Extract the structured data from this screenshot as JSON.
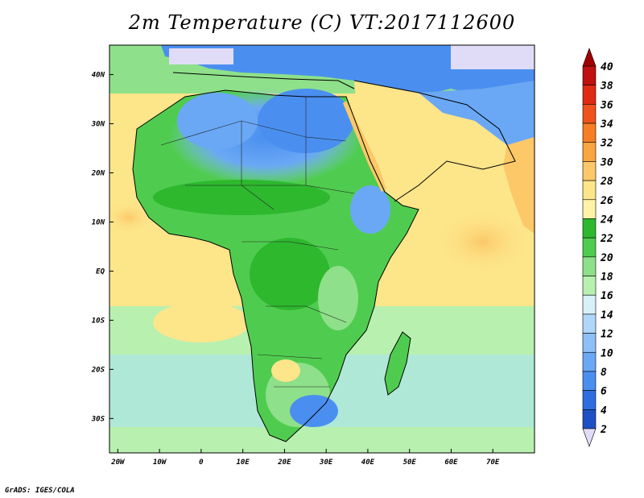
{
  "title": "2m Temperature (C) VT:2017112600",
  "credit": "GrADS: IGES/COLA",
  "map": {
    "lon_range": [
      -22,
      80
    ],
    "lat_range": [
      -37,
      46
    ],
    "lon_ticks": [
      {
        "lon": -20,
        "label": "20W"
      },
      {
        "lon": -10,
        "label": "10W"
      },
      {
        "lon": 0,
        "label": "0"
      },
      {
        "lon": 10,
        "label": "10E"
      },
      {
        "lon": 20,
        "label": "20E"
      },
      {
        "lon": 30,
        "label": "30E"
      },
      {
        "lon": 40,
        "label": "40E"
      },
      {
        "lon": 50,
        "label": "50E"
      },
      {
        "lon": 60,
        "label": "60E"
      },
      {
        "lon": 70,
        "label": "70E"
      }
    ],
    "lat_ticks": [
      {
        "lat": 40,
        "label": "40N"
      },
      {
        "lat": 30,
        "label": "30N"
      },
      {
        "lat": 20,
        "label": "20N"
      },
      {
        "lat": 10,
        "label": "10N"
      },
      {
        "lat": 0,
        "label": "EQ"
      },
      {
        "lat": -10,
        "label": "10S"
      },
      {
        "lat": -20,
        "label": "20S"
      },
      {
        "lat": -30,
        "label": "30S"
      }
    ]
  },
  "colorbar": {
    "levels": [
      "2",
      "4",
      "6",
      "8",
      "10",
      "12",
      "14",
      "16",
      "18",
      "20",
      "22",
      "24",
      "26",
      "28",
      "30",
      "32",
      "34",
      "36",
      "38",
      "40"
    ],
    "colors": [
      "#1e2a8a",
      "#1f4fc4",
      "#2e6ee0",
      "#4a8ff0",
      "#6aa8f5",
      "#8cc0f7",
      "#b0d6f9",
      "#d8f0f8",
      "#b8f0b0",
      "#8fe08a",
      "#4fcc4f",
      "#2eb82e",
      "#fff3a8",
      "#fde58a",
      "#fcc868",
      "#f9a640",
      "#f67e24",
      "#f0521c",
      "#e02a14",
      "#c01010",
      "#9e0808"
    ],
    "below_color": "#e0dcf8",
    "above_color": "#a00000"
  }
}
